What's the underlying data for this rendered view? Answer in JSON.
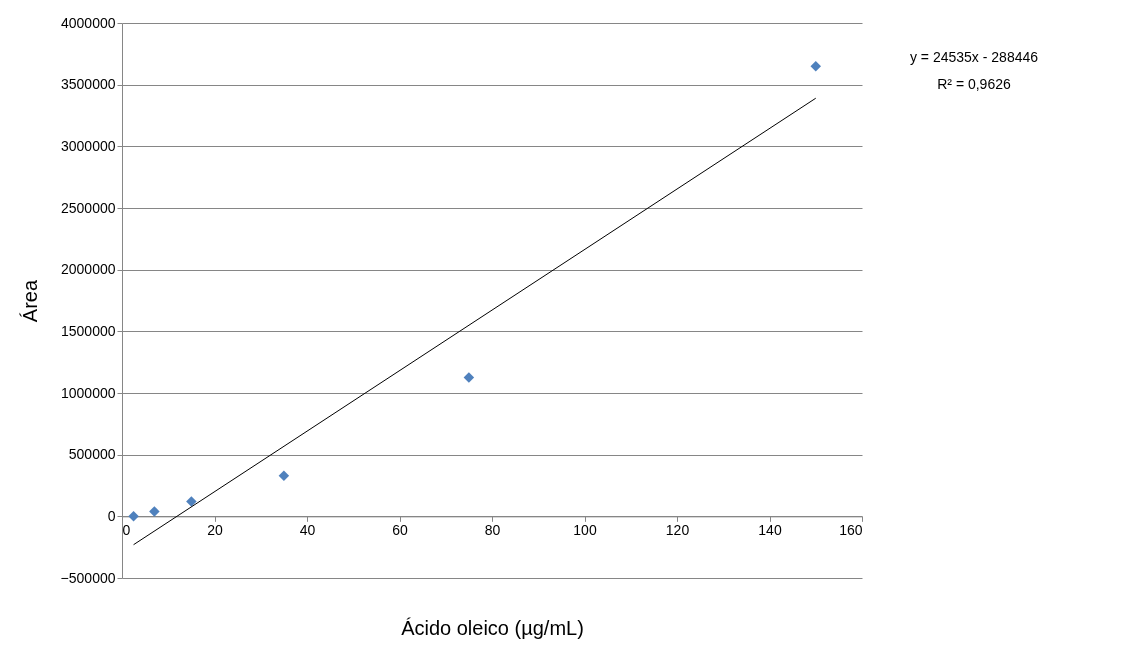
{
  "chart_data": {
    "type": "scatter",
    "xlabel": "Ácido oleico (µg/mL)",
    "ylabel": "Área",
    "xlim": [
      0,
      160
    ],
    "xticks": [
      0,
      20,
      40,
      60,
      80,
      100,
      120,
      140,
      160
    ],
    "ylim": [
      -500000,
      4000000
    ],
    "yticks": [
      -500000,
      0,
      500000,
      1000000,
      1500000,
      2000000,
      2500000,
      3000000,
      3500000,
      4000000
    ],
    "grid": "y",
    "marker": "diamond",
    "series": [
      {
        "color": "#4f81bd",
        "x": [
          2.5,
          7,
          15,
          35,
          75,
          150
        ],
        "values": [
          0,
          40000,
          120000,
          330000,
          1125000,
          3650000
        ]
      },
      {
        "type": "line",
        "color": "#000000",
        "marker": "none",
        "x": [
          2.5,
          150
        ],
        "values": [
          -230000,
          3390000
        ]
      }
    ],
    "annotations": [
      "y = 24535x - 288446",
      "R² = 0,9626"
    ]
  }
}
